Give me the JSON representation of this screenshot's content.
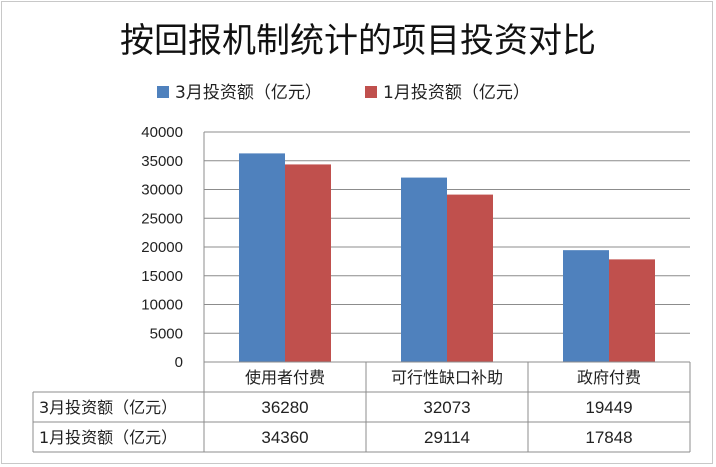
{
  "chart_data": {
    "type": "bar",
    "title": "按回报机制统计的项目投资对比",
    "categories": [
      "使用者付费",
      "可行性缺口补助",
      "政府付费"
    ],
    "series": [
      {
        "name": "3月投资额（亿元）",
        "values": [
          36280,
          32073,
          19449
        ],
        "color": "#4f81bd"
      },
      {
        "name": "1月投资额（亿元）",
        "values": [
          34360,
          29114,
          17848
        ],
        "color": "#c0504d"
      }
    ],
    "ylim": [
      0,
      40000
    ],
    "yticks": [
      0,
      5000,
      10000,
      15000,
      20000,
      25000,
      30000,
      35000,
      40000
    ],
    "ytick_labels": [
      "0",
      "5000",
      "10000",
      "15000",
      "20000",
      "25000",
      "30000",
      "35000",
      "40000"
    ],
    "grid": true,
    "legend_position": "top-left",
    "data_table": true
  }
}
